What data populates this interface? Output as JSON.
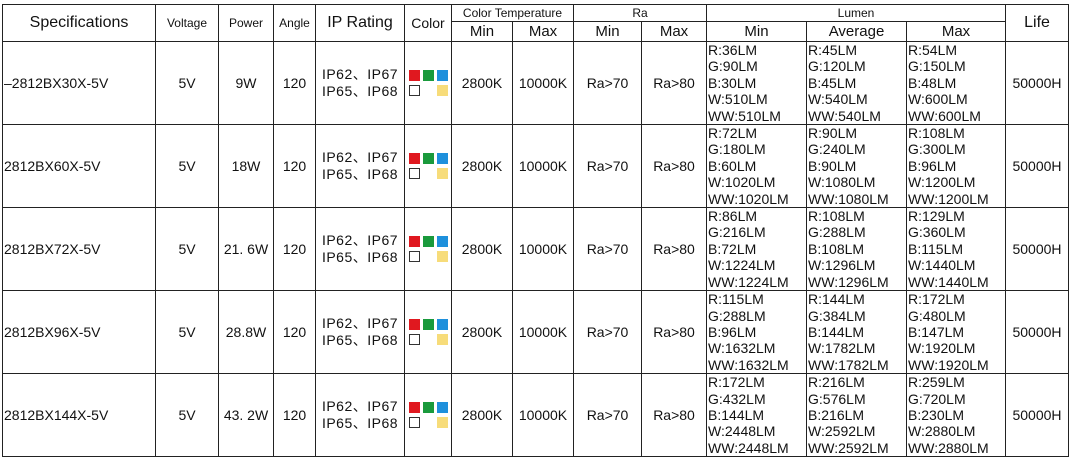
{
  "header": {
    "columns": [
      "Specifications",
      "Voltage",
      "Power",
      "Angle",
      "IP Rating",
      "Color",
      "Color Temperature",
      "Ra",
      "Lumen",
      "Life"
    ],
    "sub_columns": [
      "Min",
      "Max",
      "Min",
      "Max",
      "Min",
      "Average",
      "Max"
    ]
  },
  "rows": [
    {
      "spec": "–2812BX30X-5V",
      "voltage": "5V",
      "power": "9W",
      "angle": "120",
      "ip": [
        "IP62、IP67",
        "IP65、IP68"
      ],
      "ct_min": "2800K",
      "ct_max": "10000K",
      "ra_min": "Ra>70",
      "ra_max": "Ra>80",
      "lumen_min": [
        "R:36LM",
        "G:90LM",
        "B:30LM",
        "W:510LM",
        "WW:510LM"
      ],
      "lumen_avg": [
        "R:45LM",
        "G:120LM",
        "B:45LM",
        "W:540LM",
        "WW:540LM"
      ],
      "lumen_max": [
        "R:54LM",
        "G:150LM",
        "B:48LM",
        "W:600LM",
        "WW:600LM"
      ],
      "life": "50000H"
    },
    {
      "spec": "2812BX60X-5V",
      "voltage": "5V",
      "power": "18W",
      "angle": "120",
      "ip": [
        "IP62、IP67",
        "IP65、IP68"
      ],
      "ct_min": "2800K",
      "ct_max": "10000K",
      "ra_min": "Ra>70",
      "ra_max": "Ra>80",
      "lumen_min": [
        "R:72LM",
        "G:180LM",
        "B:60LM",
        "W:1020LM",
        "WW:1020LM"
      ],
      "lumen_avg": [
        "R:90LM",
        "G:240LM",
        "B:90LM",
        "W:1080LM",
        "WW:1080LM"
      ],
      "lumen_max": [
        "R:108LM",
        "G:300LM",
        "B:96LM",
        "W:1200LM",
        "WW:1200LM"
      ],
      "life": "50000H"
    },
    {
      "spec": "2812BX72X-5V",
      "voltage": "5V",
      "power": "21. 6W",
      "angle": "120",
      "ip": [
        "IP62、IP67",
        "IP65、IP68"
      ],
      "ct_min": "2800K",
      "ct_max": "10000K",
      "ra_min": "Ra>70",
      "ra_max": "Ra>80",
      "lumen_min": [
        "R:86LM",
        "G:216LM",
        "B:72LM",
        "W:1224LM",
        "WW:1224LM"
      ],
      "lumen_avg": [
        "R:108LM",
        "G:288LM",
        "B:108LM",
        "W:1296LM",
        "WW:1296LM"
      ],
      "lumen_max": [
        "R:129LM",
        "G:360LM",
        "B:115LM",
        "W:1440LM",
        "WW:1440LM"
      ],
      "life": "50000H"
    },
    {
      "spec": "2812BX96X-5V",
      "voltage": "5V",
      "power": "28.8W",
      "angle": "120",
      "ip": [
        "IP62、IP67",
        "IP65、IP68"
      ],
      "ct_min": "2800K",
      "ct_max": "10000K",
      "ra_min": "Ra>70",
      "ra_max": "Ra>80",
      "lumen_min": [
        "R:115LM",
        "G:288LM",
        "B:96LM",
        "W:1632LM",
        "WW:1632LM"
      ],
      "lumen_avg": [
        "R:144LM",
        "G:384LM",
        "B:144LM",
        "W:1782LM",
        "WW:1782LM"
      ],
      "lumen_max": [
        "R:172LM",
        "G:480LM",
        "B:147LM",
        "W:1920LM",
        "WW:1920LM"
      ],
      "life": "50000H"
    },
    {
      "spec": "2812BX144X-5V",
      "voltage": "5V",
      "power": "43. 2W",
      "angle": "120",
      "ip": [
        "IP62、IP67",
        "IP65、IP68"
      ],
      "ct_min": "2800K",
      "ct_max": "10000K",
      "ra_min": "Ra>70",
      "ra_max": "Ra>80",
      "lumen_min": [
        "R:172LM",
        "G:432LM",
        "B:144LM",
        "W:2448LM",
        "WW:2448LM"
      ],
      "lumen_avg": [
        "R:216LM",
        "G:576LM",
        "B:216LM",
        "W:2592LM",
        "WW:2592LM"
      ],
      "lumen_max": [
        "R:259LM",
        "G:720LM",
        "B:230LM",
        "W:2880LM",
        "WW:2880LM"
      ],
      "life": "50000H"
    }
  ]
}
